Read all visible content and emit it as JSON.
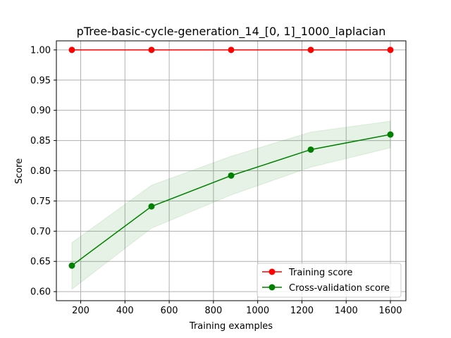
{
  "chart_data": {
    "type": "line",
    "title": "pTree-basic-cycle-generation_14_[0, 1]_1000_laplacian",
    "xlabel": "Training examples",
    "ylabel": "Score",
    "xlim": [
      90,
      1670
    ],
    "ylim": [
      0.585,
      1.015
    ],
    "xticks": [
      200,
      400,
      600,
      800,
      1000,
      1200,
      1400,
      1600
    ],
    "yticks": [
      0.6,
      0.65,
      0.7,
      0.75,
      0.8,
      0.85,
      0.9,
      0.95,
      1.0
    ],
    "grid": true,
    "legend_position": "lower-right",
    "x": [
      160,
      520,
      880,
      1240,
      1600
    ],
    "series": [
      {
        "name": "Training score",
        "color": "#ff0000",
        "marker": "circle",
        "values": [
          1.0,
          1.0,
          1.0,
          1.0,
          1.0
        ],
        "band_lower": [
          1.0,
          1.0,
          1.0,
          1.0,
          1.0
        ],
        "band_upper": [
          1.0,
          1.0,
          1.0,
          1.0,
          1.0
        ]
      },
      {
        "name": "Cross-validation score",
        "color": "#008000",
        "marker": "circle",
        "values": [
          0.643,
          0.741,
          0.792,
          0.835,
          0.86
        ],
        "band_lower": [
          0.604,
          0.705,
          0.76,
          0.806,
          0.838
        ],
        "band_upper": [
          0.681,
          0.776,
          0.824,
          0.864,
          0.882
        ]
      }
    ]
  }
}
